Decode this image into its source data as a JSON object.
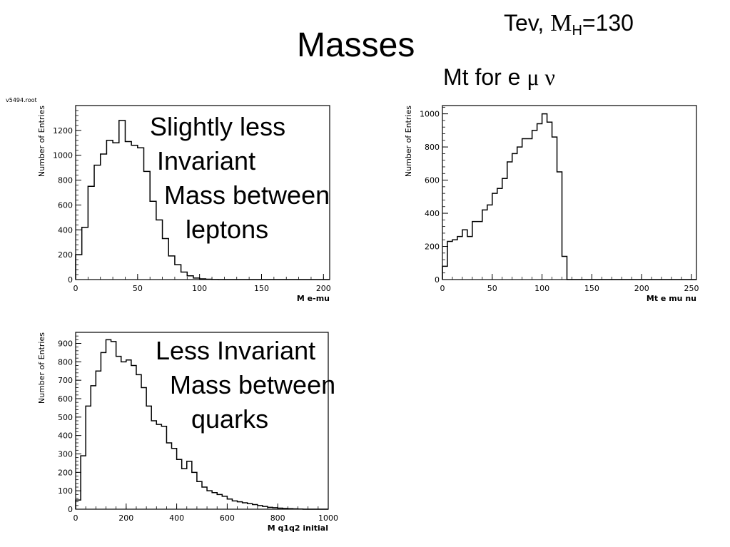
{
  "slide": {
    "title": "Masses",
    "energy_prefix": "Tev, ",
    "energy_symbol": "M",
    "energy_subscript": "H",
    "energy_value": "=130",
    "mt_heading_text": "Mt for e ",
    "mt_heading_greek": "μ ν",
    "file_label": "v5494.root",
    "note_leptons": "Slightly less\n Invariant\n  Mass between\n     leptons",
    "note_quarks": "Less Invariant\n  Mass between\n     quarks"
  },
  "colors": {
    "background": "#ffffff",
    "line": "#000000"
  },
  "chart_data": [
    {
      "id": "m-emu",
      "type": "histogram",
      "title": "",
      "xlabel": "M e-mu",
      "ylabel": "Number of Entries",
      "xlim": [
        0,
        205
      ],
      "ylim": [
        0,
        1400
      ],
      "xticks": [
        0,
        50,
        100,
        150,
        200
      ],
      "yticks": [
        0,
        200,
        400,
        600,
        800,
        1000,
        1200
      ],
      "bin_width": 5,
      "bin_start": 0,
      "values": [
        200,
        420,
        750,
        920,
        1010,
        1120,
        1100,
        1280,
        1110,
        1080,
        1060,
        870,
        630,
        480,
        330,
        190,
        120,
        60,
        30,
        12,
        6,
        3,
        1,
        0,
        0,
        0,
        0,
        0,
        0,
        0,
        0,
        0,
        0,
        0,
        0,
        0,
        0,
        0,
        0,
        0,
        0
      ]
    },
    {
      "id": "mt-emunu",
      "type": "histogram",
      "title": "",
      "xlabel": "Mt e mu nu",
      "ylabel": "Number of Entries",
      "xlim": [
        0,
        255
      ],
      "ylim": [
        0,
        1050
      ],
      "xticks": [
        0,
        50,
        100,
        150,
        200,
        250
      ],
      "yticks": [
        0,
        200,
        400,
        600,
        800,
        1000
      ],
      "bin_width": 5,
      "bin_start": 0,
      "values": [
        80,
        230,
        240,
        260,
        300,
        260,
        350,
        350,
        420,
        450,
        520,
        550,
        610,
        710,
        760,
        800,
        850,
        850,
        900,
        940,
        1000,
        950,
        860,
        650,
        140,
        0,
        0,
        0,
        0,
        0,
        0,
        0,
        0,
        0,
        0,
        0,
        0,
        0,
        0,
        0,
        0,
        0,
        0,
        0,
        0,
        0,
        0,
        0,
        0,
        0,
        0
      ]
    },
    {
      "id": "m-q1q2",
      "type": "histogram",
      "title": "",
      "xlabel": "M q1q2 initial",
      "ylabel": "Number of Entries",
      "xlim": [
        0,
        1000
      ],
      "ylim": [
        0,
        960
      ],
      "xticks": [
        0,
        200,
        400,
        600,
        800,
        1000
      ],
      "yticks": [
        0,
        100,
        200,
        300,
        400,
        500,
        600,
        700,
        800,
        900
      ],
      "bin_width": 20,
      "bin_start": 0,
      "values": [
        50,
        290,
        560,
        670,
        750,
        850,
        920,
        910,
        830,
        800,
        810,
        780,
        730,
        660,
        560,
        480,
        460,
        450,
        360,
        330,
        270,
        220,
        260,
        200,
        150,
        120,
        100,
        90,
        80,
        70,
        55,
        45,
        40,
        35,
        30,
        25,
        20,
        15,
        10,
        8,
        6,
        4,
        3,
        2,
        1,
        0,
        0,
        0,
        0,
        0
      ]
    }
  ]
}
